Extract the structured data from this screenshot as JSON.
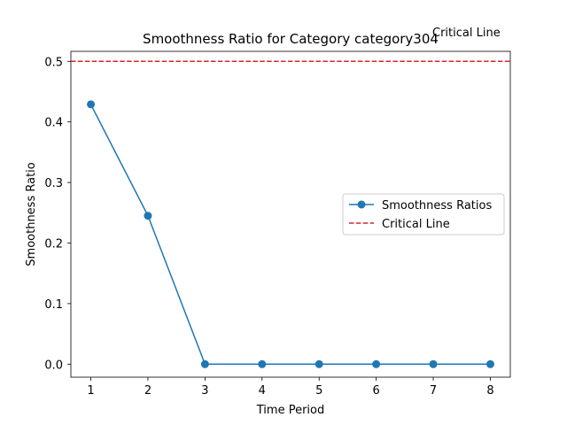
{
  "chart_data": {
    "type": "line",
    "title": "Smoothness Ratio for Category category304",
    "xlabel": "Time Period",
    "ylabel": "Smoothness Ratio",
    "x": [
      1,
      2,
      3,
      4,
      5,
      6,
      7,
      8
    ],
    "xlim": [
      0.65,
      8.35
    ],
    "ylim": [
      -0.0215,
      0.5165
    ],
    "x_ticks": [
      "1",
      "2",
      "3",
      "4",
      "5",
      "6",
      "7",
      "8"
    ],
    "y_ticks": [
      "0.0",
      "0.1",
      "0.2",
      "0.3",
      "0.4",
      "0.5"
    ],
    "grid": false,
    "legend_position": "center-right",
    "series": [
      {
        "name": "Smoothness Ratios",
        "values": [
          0.429,
          0.245,
          0.0,
          0.0,
          0.0,
          0.0,
          0.0,
          0.0
        ],
        "color": "#1f77b4",
        "marker": "circle"
      }
    ],
    "reference_lines": [
      {
        "name": "Critical Line",
        "y": 0.5,
        "color": "#d62728",
        "style": "dashed"
      }
    ],
    "annotations": [
      {
        "text": "Critical Line"
      }
    ]
  }
}
